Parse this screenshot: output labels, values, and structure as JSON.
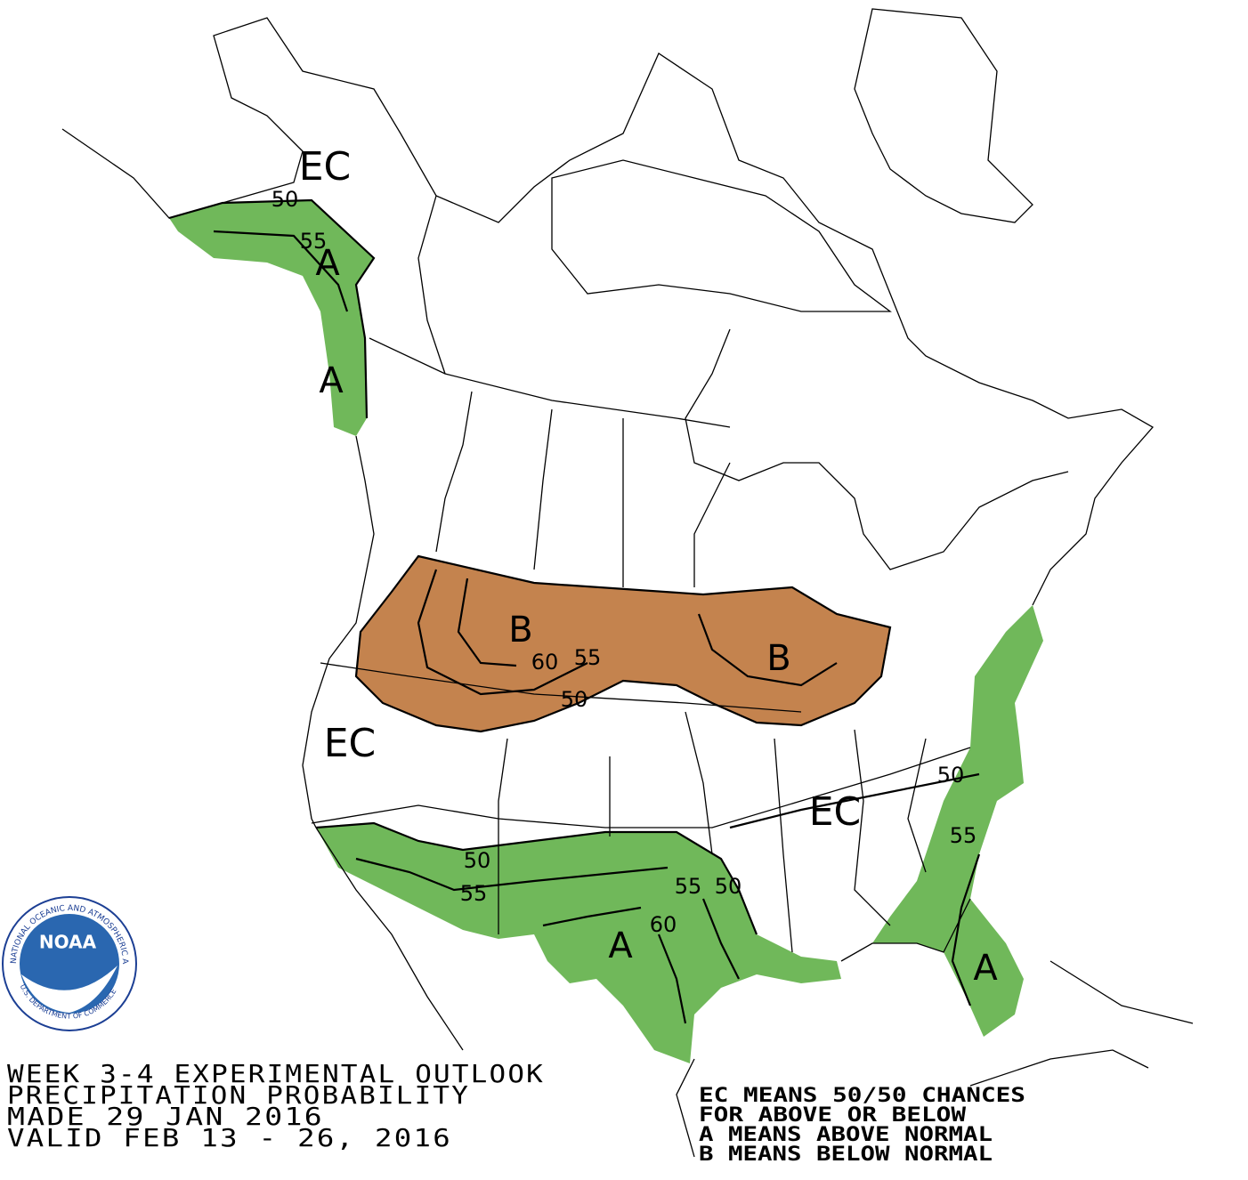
{
  "map": {
    "labels": [
      "EC",
      "50",
      "55",
      "A",
      "A",
      "B",
      "60",
      "55",
      "50",
      "B",
      "EC",
      "EC",
      "50",
      "55",
      "50",
      "55",
      "55",
      "50",
      "60",
      "A",
      "A"
    ]
  },
  "logo": {
    "name": "NOAA",
    "ring": "NATIONAL OCEANIC AND ATMOSPHERIC ADMINISTRATION",
    "bottom": "U.S. DEPARTMENT OF COMMERCE"
  },
  "title": [
    "WEEK 3-4 EXPERIMENTAL OUTLOOK",
    "PRECIPITATION PROBABILITY",
    "MADE  29 JAN 2016",
    "VALID  FEB 13 - 26, 2016"
  ],
  "legend": [
    "EC MEANS 50/50 CHANCES",
    "FOR ABOVE OR BELOW",
    "A MEANS ABOVE NORMAL",
    "B MEANS BELOW NORMAL"
  ]
}
